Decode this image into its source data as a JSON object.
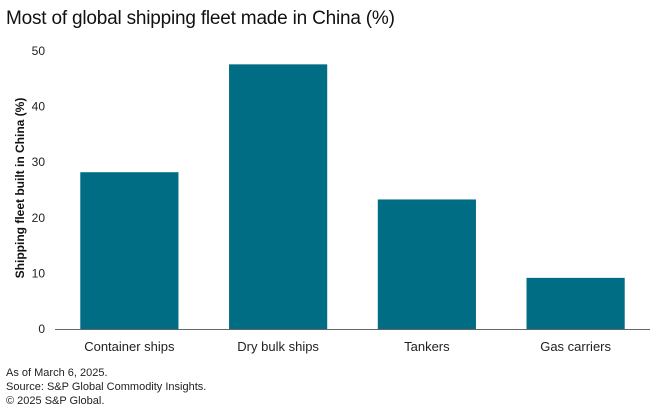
{
  "title": "Most of global shipping fleet made in China (%)",
  "footnotes": {
    "as_of": "As of March 6, 2025.",
    "source": "Source: S&P Global Commodity Insights.",
    "copyright": "© 2025 S&P Global."
  },
  "colors": {
    "bar": "#006d85",
    "axis": "#666666"
  },
  "chart_data": {
    "type": "bar",
    "title": "Most of global shipping fleet made in China (%)",
    "xlabel": "",
    "ylabel": "Shipping fleet built in China (%)",
    "categories": [
      "Container ships",
      "Dry bulk ships",
      "Tankers",
      "Gas carriers"
    ],
    "values": [
      28.2,
      47.6,
      23.3,
      9.2
    ],
    "ylim": [
      0,
      50
    ],
    "yticks": [
      0,
      10,
      20,
      30,
      40,
      50
    ],
    "grid": false,
    "legend": "none"
  }
}
